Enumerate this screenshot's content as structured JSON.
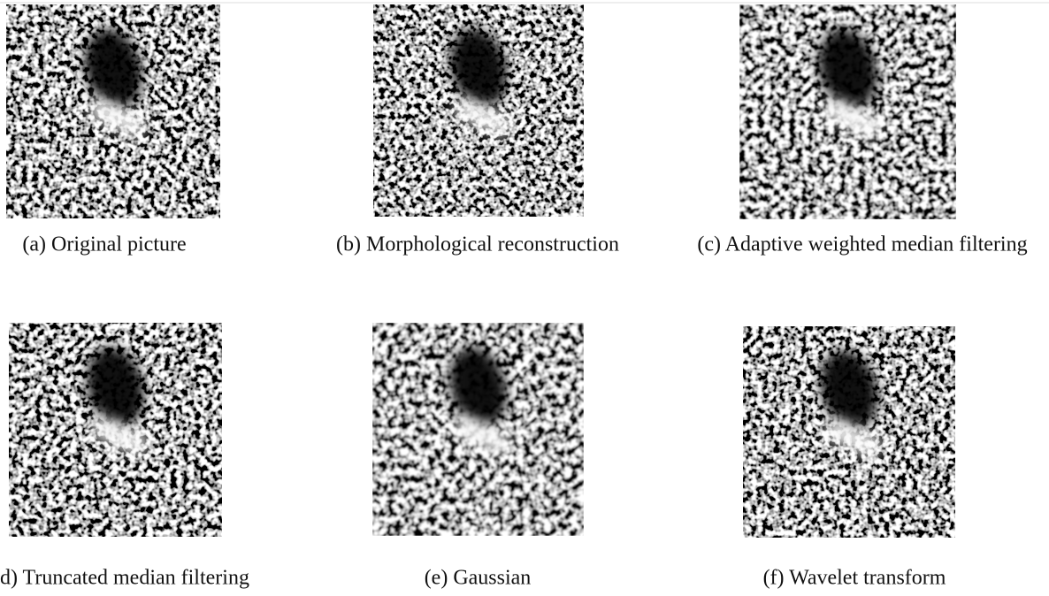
{
  "figure": {
    "panels": [
      {
        "caption": "(a) Original picture"
      },
      {
        "caption": "(b) Morphological reconstruction"
      },
      {
        "caption": "(c) Adaptive weighted median filtering"
      },
      {
        "caption": "d) Truncated median filtering"
      },
      {
        "caption": "(e) Gaussian"
      },
      {
        "caption": "(f) Wavelet transform"
      }
    ]
  }
}
